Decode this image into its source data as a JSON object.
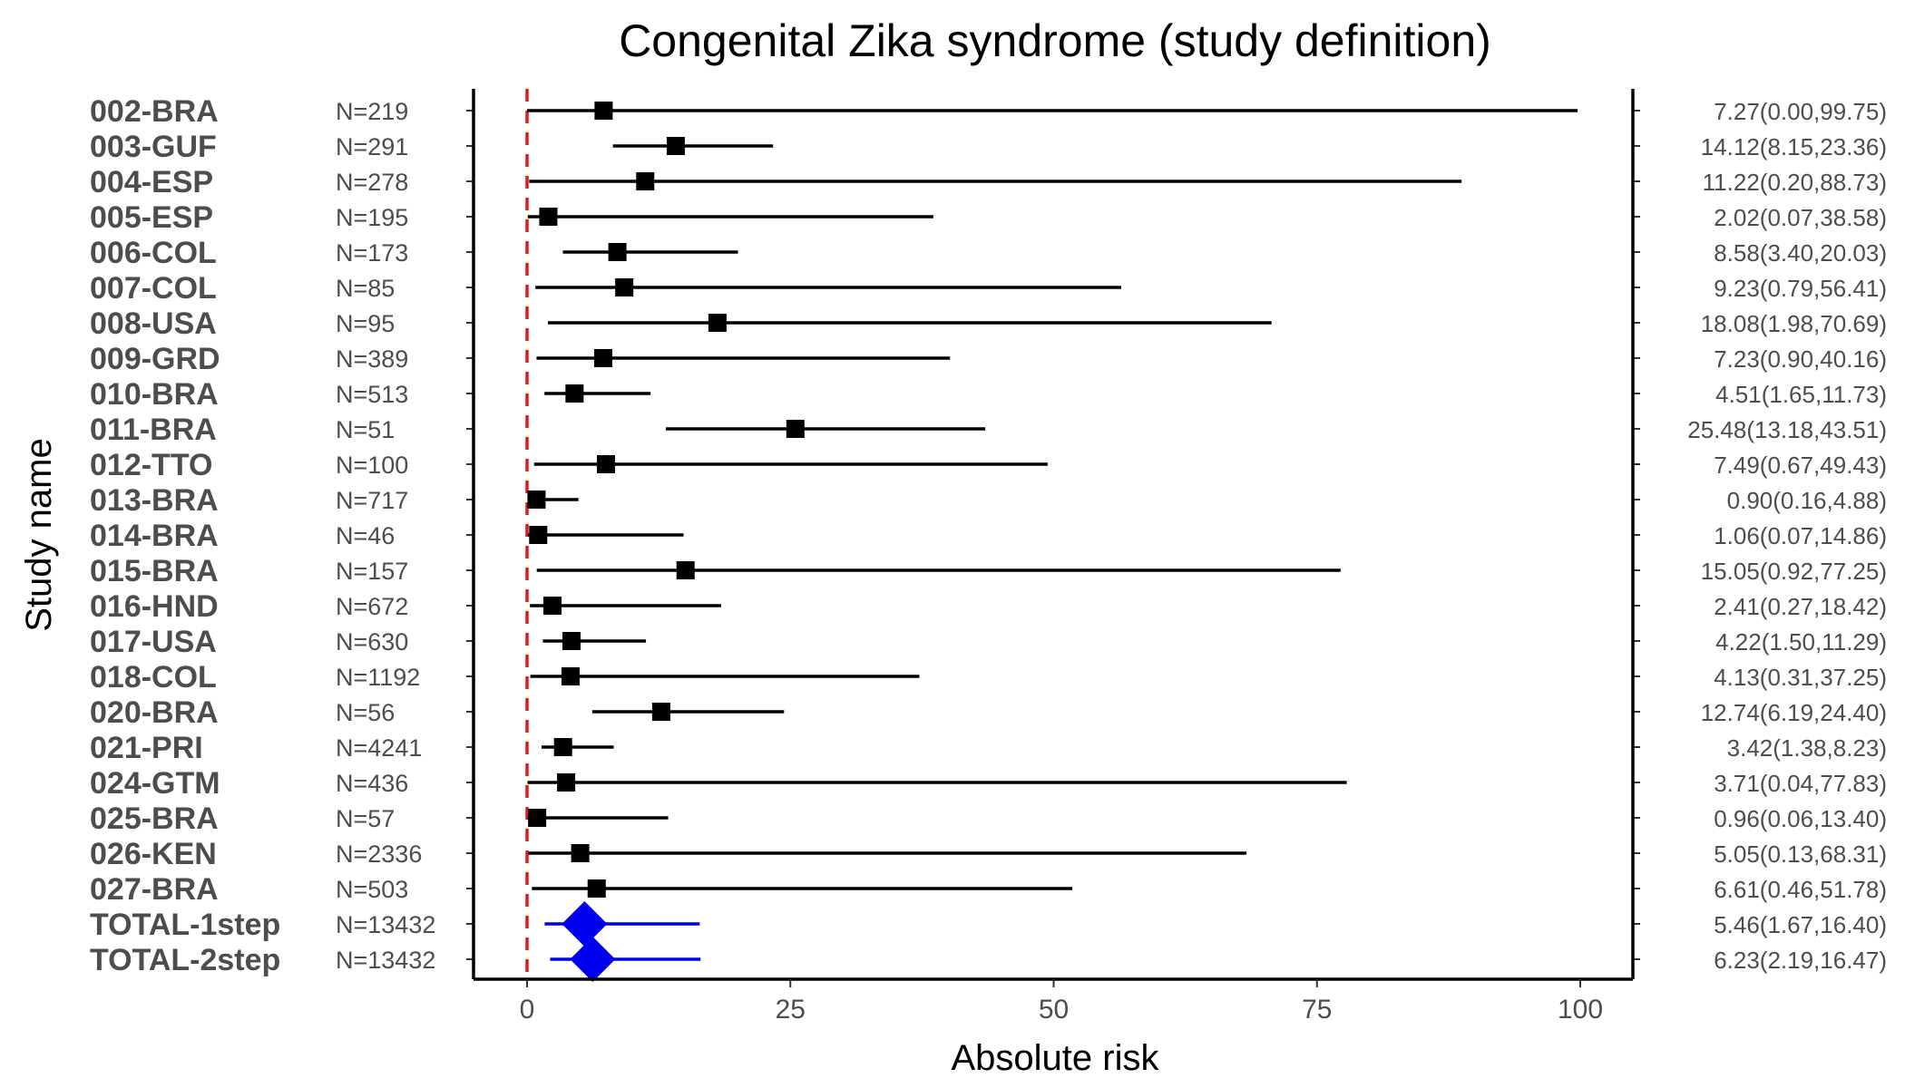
{
  "chart_data": {
    "type": "forest",
    "title": "Congenital Zika syndrome (study definition)",
    "xlabel": "Absolute risk",
    "ylabel": "Study name",
    "xlim": [
      0,
      100
    ],
    "xticks": [
      "0",
      "25",
      "50",
      "75",
      "100"
    ],
    "reference_line": 0,
    "rows": [
      {
        "study": "002-BRA",
        "n": "N=219",
        "est": 7.27,
        "lo": 0.0,
        "hi": 99.75,
        "label": "7.27(0.00,99.75)",
        "total": false
      },
      {
        "study": "003-GUF",
        "n": "N=291",
        "est": 14.12,
        "lo": 8.15,
        "hi": 23.36,
        "label": "14.12(8.15,23.36)",
        "total": false
      },
      {
        "study": "004-ESP",
        "n": "N=278",
        "est": 11.22,
        "lo": 0.2,
        "hi": 88.73,
        "label": "11.22(0.20,88.73)",
        "total": false
      },
      {
        "study": "005-ESP",
        "n": "N=195",
        "est": 2.02,
        "lo": 0.07,
        "hi": 38.58,
        "label": "2.02(0.07,38.58)",
        "total": false
      },
      {
        "study": "006-COL",
        "n": "N=173",
        "est": 8.58,
        "lo": 3.4,
        "hi": 20.03,
        "label": "8.58(3.40,20.03)",
        "total": false
      },
      {
        "study": "007-COL",
        "n": "N=85",
        "est": 9.23,
        "lo": 0.79,
        "hi": 56.41,
        "label": "9.23(0.79,56.41)",
        "total": false
      },
      {
        "study": "008-USA",
        "n": "N=95",
        "est": 18.08,
        "lo": 1.98,
        "hi": 70.69,
        "label": "18.08(1.98,70.69)",
        "total": false
      },
      {
        "study": "009-GRD",
        "n": "N=389",
        "est": 7.23,
        "lo": 0.9,
        "hi": 40.16,
        "label": "7.23(0.90,40.16)",
        "total": false
      },
      {
        "study": "010-BRA",
        "n": "N=513",
        "est": 4.51,
        "lo": 1.65,
        "hi": 11.73,
        "label": "4.51(1.65,11.73)",
        "total": false
      },
      {
        "study": "011-BRA",
        "n": "N=51",
        "est": 25.48,
        "lo": 13.18,
        "hi": 43.51,
        "label": "25.48(13.18,43.51)",
        "total": false
      },
      {
        "study": "012-TTO",
        "n": "N=100",
        "est": 7.49,
        "lo": 0.67,
        "hi": 49.43,
        "label": "7.49(0.67,49.43)",
        "total": false
      },
      {
        "study": "013-BRA",
        "n": "N=717",
        "est": 0.9,
        "lo": 0.16,
        "hi": 4.88,
        "label": "0.90(0.16,4.88)",
        "total": false
      },
      {
        "study": "014-BRA",
        "n": "N=46",
        "est": 1.06,
        "lo": 0.07,
        "hi": 14.86,
        "label": "1.06(0.07,14.86)",
        "total": false
      },
      {
        "study": "015-BRA",
        "n": "N=157",
        "est": 15.05,
        "lo": 0.92,
        "hi": 77.25,
        "label": "15.05(0.92,77.25)",
        "total": false
      },
      {
        "study": "016-HND",
        "n": "N=672",
        "est": 2.41,
        "lo": 0.27,
        "hi": 18.42,
        "label": "2.41(0.27,18.42)",
        "total": false
      },
      {
        "study": "017-USA",
        "n": "N=630",
        "est": 4.22,
        "lo": 1.5,
        "hi": 11.29,
        "label": "4.22(1.50,11.29)",
        "total": false
      },
      {
        "study": "018-COL",
        "n": "N=1192",
        "est": 4.13,
        "lo": 0.31,
        "hi": 37.25,
        "label": "4.13(0.31,37.25)",
        "total": false
      },
      {
        "study": "020-BRA",
        "n": "N=56",
        "est": 12.74,
        "lo": 6.19,
        "hi": 24.4,
        "label": "12.74(6.19,24.40)",
        "total": false
      },
      {
        "study": "021-PRI",
        "n": "N=4241",
        "est": 3.42,
        "lo": 1.38,
        "hi": 8.23,
        "label": "3.42(1.38,8.23)",
        "total": false
      },
      {
        "study": "024-GTM",
        "n": "N=436",
        "est": 3.71,
        "lo": 0.04,
        "hi": 77.83,
        "label": "3.71(0.04,77.83)",
        "total": false
      },
      {
        "study": "025-BRA",
        "n": "N=57",
        "est": 0.96,
        "lo": 0.06,
        "hi": 13.4,
        "label": "0.96(0.06,13.40)",
        "total": false
      },
      {
        "study": "026-KEN",
        "n": "N=2336",
        "est": 5.05,
        "lo": 0.13,
        "hi": 68.31,
        "label": "5.05(0.13,68.31)",
        "total": false
      },
      {
        "study": "027-BRA",
        "n": "N=503",
        "est": 6.61,
        "lo": 0.46,
        "hi": 51.78,
        "label": "6.61(0.46,51.78)",
        "total": false
      },
      {
        "study": "TOTAL-1step",
        "n": "N=13432",
        "est": 5.46,
        "lo": 1.67,
        "hi": 16.4,
        "label": "5.46(1.67,16.40)",
        "total": true
      },
      {
        "study": "TOTAL-2step",
        "n": "N=13432",
        "est": 6.23,
        "lo": 2.19,
        "hi": 16.47,
        "label": "6.23(2.19,16.47)",
        "total": true
      }
    ],
    "colors": {
      "study_marker": "#000000",
      "total_marker": "#0000ee",
      "reference_line": "#e31a1c",
      "text": "#4d4d4d"
    }
  }
}
